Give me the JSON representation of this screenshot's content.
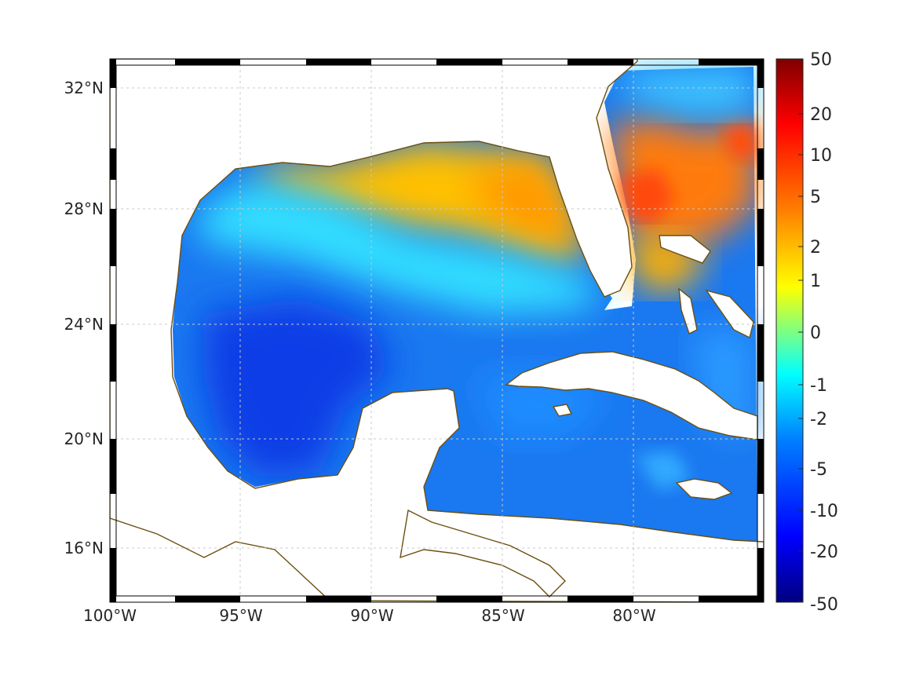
{
  "map": {
    "lon_range": [
      -100,
      -75
    ],
    "lat_range": [
      14.2,
      33
    ],
    "projection": "Mercator",
    "grid": "dotted",
    "frame": "black-white alternating border",
    "coastline_color": "#6b4f10",
    "land_color": "#ffffff",
    "colormap": "jet",
    "lon_ticks": [
      {
        "value": -100,
        "label": "100°W"
      },
      {
        "value": -95,
        "label": "95°W"
      },
      {
        "value": -90,
        "label": "90°W"
      },
      {
        "value": -85,
        "label": "85°W"
      },
      {
        "value": -80,
        "label": "80°W"
      }
    ],
    "lat_ticks": [
      {
        "value": 32,
        "label": "32°N"
      },
      {
        "value": 28,
        "label": "28°N"
      },
      {
        "value": 24,
        "label": "24°N"
      },
      {
        "value": 20,
        "label": "20°N"
      },
      {
        "value": 16,
        "label": "16°N"
      }
    ]
  },
  "colorbar": {
    "min": -50,
    "max": 50,
    "ticks": [
      "50",
      "20",
      "10",
      "5",
      "2",
      "1",
      "0",
      "-1",
      "-2",
      "-5",
      "-10",
      "-20",
      "-50"
    ]
  },
  "field": {
    "description_values": "anomaly field, positive over northeastern Gulf shelf and Florida/Georgia offshore, negative (-5 to -10) over central and western Gulf and Caribbean",
    "regions": [
      {
        "name": "northeast gulf shelf",
        "value": 3
      },
      {
        "name": "atlantic off georgia",
        "value": 8
      },
      {
        "name": "central gulf",
        "value": -8
      },
      {
        "name": "caribbean",
        "value": -4
      }
    ]
  }
}
